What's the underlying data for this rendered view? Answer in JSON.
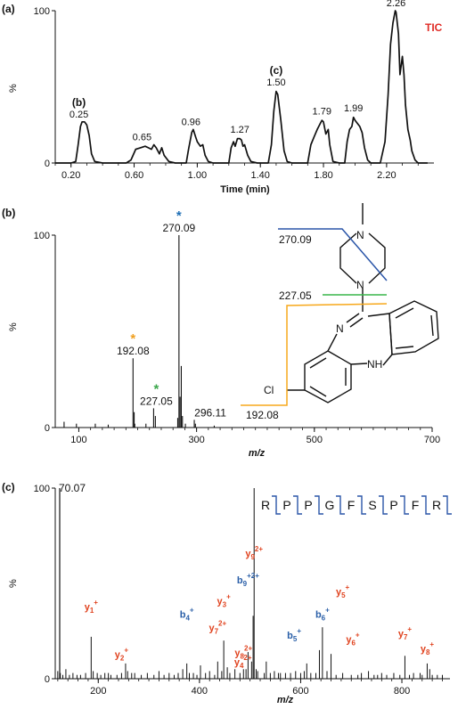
{
  "chart_data": [
    {
      "panel": "(a)",
      "type": "line",
      "annotation": "TIC",
      "xlabel": "Time (min)",
      "ylabel": "%",
      "xlim": [
        0.1,
        2.5
      ],
      "ylim": [
        0,
        100
      ],
      "x_ticks": [
        "0.20",
        "0.60",
        "1.00",
        "1.40",
        "1.80",
        "2.20"
      ],
      "y_ticks": [
        "0",
        "100"
      ],
      "peak_labels": [
        {
          "x": 0.25,
          "y": 27,
          "text": "0.25"
        },
        {
          "x": 0.65,
          "y": 12,
          "text": "0.65"
        },
        {
          "x": 0.96,
          "y": 22,
          "text": "0.96"
        },
        {
          "x": 1.27,
          "y": 17,
          "text": "1.27"
        },
        {
          "x": 1.5,
          "y": 48,
          "text": "1.50"
        },
        {
          "x": 1.79,
          "y": 29,
          "text": "1.79"
        },
        {
          "x": 1.99,
          "y": 31,
          "text": "1.99"
        },
        {
          "x": 2.26,
          "y": 100,
          "text": "2.26"
        }
      ],
      "peak_tags": [
        {
          "x": 0.25,
          "text": "(b)"
        },
        {
          "x": 1.5,
          "text": "(c)"
        }
      ],
      "trace": [
        [
          0.1,
          0
        ],
        [
          0.2,
          0
        ],
        [
          0.23,
          1
        ],
        [
          0.245,
          12
        ],
        [
          0.26,
          24
        ],
        [
          0.27,
          27
        ],
        [
          0.285,
          27
        ],
        [
          0.3,
          25
        ],
        [
          0.315,
          18
        ],
        [
          0.33,
          6
        ],
        [
          0.35,
          1
        ],
        [
          0.4,
          0
        ],
        [
          0.55,
          0
        ],
        [
          0.58,
          2
        ],
        [
          0.61,
          9
        ],
        [
          0.64,
          10
        ],
        [
          0.67,
          11
        ],
        [
          0.69,
          10
        ],
        [
          0.71,
          9
        ],
        [
          0.725,
          12
        ],
        [
          0.74,
          10
        ],
        [
          0.76,
          6
        ],
        [
          0.775,
          10
        ],
        [
          0.79,
          5
        ],
        [
          0.82,
          1
        ],
        [
          0.86,
          0
        ],
        [
          0.93,
          0
        ],
        [
          0.945,
          9
        ],
        [
          0.965,
          20
        ],
        [
          0.975,
          22
        ],
        [
          0.99,
          17
        ],
        [
          1.0,
          14
        ],
        [
          1.02,
          11
        ],
        [
          1.035,
          12
        ],
        [
          1.05,
          5
        ],
        [
          1.07,
          1
        ],
        [
          1.1,
          0
        ],
        [
          1.2,
          0
        ],
        [
          1.215,
          10
        ],
        [
          1.23,
          14
        ],
        [
          1.24,
          11
        ],
        [
          1.255,
          16
        ],
        [
          1.27,
          16
        ],
        [
          1.28,
          15
        ],
        [
          1.29,
          11
        ],
        [
          1.3,
          12
        ],
        [
          1.32,
          5
        ],
        [
          1.34,
          1
        ],
        [
          1.38,
          0
        ],
        [
          1.45,
          0
        ],
        [
          1.47,
          12
        ],
        [
          1.485,
          34
        ],
        [
          1.5,
          47
        ],
        [
          1.51,
          45
        ],
        [
          1.53,
          28
        ],
        [
          1.55,
          8
        ],
        [
          1.57,
          1
        ],
        [
          1.6,
          0
        ],
        [
          1.7,
          0
        ],
        [
          1.72,
          12
        ],
        [
          1.74,
          17
        ],
        [
          1.76,
          22
        ],
        [
          1.78,
          26
        ],
        [
          1.79,
          28
        ],
        [
          1.8,
          27
        ],
        [
          1.815,
          19
        ],
        [
          1.83,
          22
        ],
        [
          1.84,
          12
        ],
        [
          1.86,
          1
        ],
        [
          1.9,
          0
        ],
        [
          1.935,
          0
        ],
        [
          1.95,
          14
        ],
        [
          1.965,
          22
        ],
        [
          1.98,
          24
        ],
        [
          1.99,
          30
        ],
        [
          2.0,
          28
        ],
        [
          2.015,
          26
        ],
        [
          2.03,
          24
        ],
        [
          2.045,
          20
        ],
        [
          2.06,
          10
        ],
        [
          2.08,
          2
        ],
        [
          2.1,
          0
        ],
        [
          2.16,
          0
        ],
        [
          2.19,
          14
        ],
        [
          2.21,
          45
        ],
        [
          2.225,
          78
        ],
        [
          2.24,
          92
        ],
        [
          2.255,
          100
        ],
        [
          2.26,
          99
        ],
        [
          2.275,
          85
        ],
        [
          2.285,
          58
        ],
        [
          2.3,
          70
        ],
        [
          2.31,
          58
        ],
        [
          2.32,
          38
        ],
        [
          2.335,
          22
        ],
        [
          2.35,
          15
        ],
        [
          2.36,
          8
        ],
        [
          2.38,
          2
        ],
        [
          2.4,
          0
        ],
        [
          2.46,
          0
        ]
      ]
    },
    {
      "panel": "(b)",
      "type": "bar",
      "xlabel": "m/z",
      "ylabel": "%",
      "xlim": [
        60,
        700
      ],
      "ylim": [
        0,
        100
      ],
      "x_ticks": [
        "100",
        "300",
        "500",
        "700"
      ],
      "y_ticks": [
        "0",
        "100"
      ],
      "peaks": [
        [
          75,
          3
        ],
        [
          96,
          2
        ],
        [
          128,
          2
        ],
        [
          150,
          1.5
        ],
        [
          192.08,
          36
        ],
        [
          194,
          8
        ],
        [
          195,
          2
        ],
        [
          214,
          2
        ],
        [
          227.05,
          10
        ],
        [
          230,
          6
        ],
        [
          268,
          5
        ],
        [
          270.09,
          100
        ],
        [
          272,
          16
        ],
        [
          274,
          32
        ],
        [
          276,
          6
        ],
        [
          281,
          2
        ],
        [
          296.11,
          4
        ],
        [
          298,
          2
        ],
        [
          330,
          1
        ]
      ],
      "labels": [
        {
          "x": 270.09,
          "text": "270.09",
          "star": "#1f6fb5"
        },
        {
          "x": 192.08,
          "text": "192.08",
          "star": "#f0a020"
        },
        {
          "x": 227.05,
          "text": "227.05",
          "star": "#3aa64a"
        },
        {
          "x": 296.11,
          "text": "296.11"
        }
      ],
      "structure": {
        "atoms": [
          "N",
          "N",
          "N",
          "NH",
          "Cl"
        ],
        "fragment_labels": [
          {
            "text": "270.09",
            "color": "#2a55a8"
          },
          {
            "text": "227.05",
            "color": "#39b54a"
          },
          {
            "text": "192.08",
            "color": "#f7a81b"
          }
        ]
      }
    },
    {
      "panel": "(c)",
      "type": "bar",
      "xlabel": "m/z",
      "ylabel": "%",
      "xlim": [
        115,
        895
      ],
      "ylim": [
        0,
        100
      ],
      "x_ticks": [
        "200",
        "400",
        "600",
        "800"
      ],
      "y_ticks": [
        "0",
        "100"
      ],
      "sequence": [
        "R",
        "P",
        "P",
        "G",
        "F",
        "S",
        "P",
        "F",
        "R"
      ],
      "peaks": [
        [
          120,
          4
        ],
        [
          125,
          3
        ],
        [
          130,
          2
        ],
        [
          136,
          5
        ],
        [
          143,
          2
        ],
        [
          150,
          3
        ],
        [
          158,
          2
        ],
        [
          165,
          2
        ],
        [
          175,
          3
        ],
        [
          186,
          22
        ],
        [
          190,
          4
        ],
        [
          198,
          3
        ],
        [
          205,
          2
        ],
        [
          213,
          3
        ],
        [
          220,
          3
        ],
        [
          225,
          2
        ],
        [
          237,
          2
        ],
        [
          246,
          3
        ],
        [
          254,
          8
        ],
        [
          258,
          4
        ],
        [
          266,
          3
        ],
        [
          272,
          3
        ],
        [
          285,
          2
        ],
        [
          297,
          3
        ],
        [
          310,
          2
        ],
        [
          320,
          4
        ],
        [
          330,
          2
        ],
        [
          340,
          3
        ],
        [
          350,
          2
        ],
        [
          358,
          3
        ],
        [
          367,
          5
        ],
        [
          375,
          8
        ],
        [
          380,
          3
        ],
        [
          388,
          3
        ],
        [
          395,
          2
        ],
        [
          402,
          7
        ],
        [
          412,
          3
        ],
        [
          420,
          4
        ],
        [
          430,
          2
        ],
        [
          436,
          9
        ],
        [
          444,
          4
        ],
        [
          448,
          20
        ],
        [
          455,
          6
        ],
        [
          460,
          3
        ],
        [
          470,
          5
        ],
        [
          480,
          3
        ],
        [
          487,
          5
        ],
        [
          492,
          5
        ],
        [
          496,
          14
        ],
        [
          503,
          9
        ],
        [
          506,
          33
        ],
        [
          508,
          100
        ],
        [
          512,
          5
        ],
        [
          515,
          4
        ],
        [
          528,
          3
        ],
        [
          532,
          9
        ],
        [
          540,
          3
        ],
        [
          548,
          4
        ],
        [
          556,
          3
        ],
        [
          560,
          3
        ],
        [
          570,
          3
        ],
        [
          580,
          3
        ],
        [
          590,
          4
        ],
        [
          600,
          3
        ],
        [
          607,
          4
        ],
        [
          612,
          8
        ],
        [
          620,
          3
        ],
        [
          630,
          3
        ],
        [
          637,
          15
        ],
        [
          643,
          27
        ],
        [
          652,
          4
        ],
        [
          660,
          13
        ],
        [
          670,
          2
        ],
        [
          683,
          3
        ],
        [
          700,
          2
        ],
        [
          713,
          2
        ],
        [
          720,
          3
        ],
        [
          734,
          4
        ],
        [
          745,
          2
        ],
        [
          752,
          2
        ],
        [
          760,
          3
        ],
        [
          770,
          2
        ],
        [
          784,
          3
        ],
        [
          796,
          2
        ],
        [
          806,
          12
        ],
        [
          815,
          2
        ],
        [
          823,
          3
        ],
        [
          836,
          3
        ],
        [
          840,
          2
        ],
        [
          850,
          8
        ],
        [
          855,
          5
        ],
        [
          860,
          2
        ],
        [
          870,
          2
        ],
        [
          880,
          2
        ]
      ],
      "labels": [
        {
          "x": 70.07,
          "text": "70.07"
        }
      ],
      "ion_labels": [
        {
          "x": 186,
          "y": 36,
          "text": "y1+",
          "color": "#e0431f"
        },
        {
          "x": 246,
          "y": 11,
          "text": "y2+",
          "color": "#e0431f"
        },
        {
          "x": 375,
          "y": 32,
          "text": "b4+",
          "color": "#2a5fa8"
        },
        {
          "x": 436,
          "y": 25,
          "text": "y7 2+",
          "color": "#e0431f"
        },
        {
          "x": 448,
          "y": 39,
          "text": "y3+",
          "color": "#e0431f"
        },
        {
          "x": 487,
          "y": 12,
          "text": "y8 2+",
          "color": "#e0431f"
        },
        {
          "x": 496,
          "y": 50,
          "text": "b9 +2+",
          "color": "#2a5fa8"
        },
        {
          "x": 508,
          "y": 64,
          "text": "y9 2+",
          "color": "#e0431f"
        },
        {
          "x": 486,
          "y": 7,
          "text": "y4 2+",
          "color": "#e0431f"
        },
        {
          "x": 587,
          "y": 21,
          "text": "b5+",
          "color": "#2a5fa8"
        },
        {
          "x": 643,
          "y": 32,
          "text": "b6+",
          "color": "#2a5fa8"
        },
        {
          "x": 703,
          "y": 19,
          "text": "y6+",
          "color": "#e0431f"
        },
        {
          "x": 683,
          "y": 44,
          "text": "y5+",
          "color": "#e0431f"
        },
        {
          "x": 806,
          "y": 22,
          "text": "y7+",
          "color": "#e0431f"
        },
        {
          "x": 850,
          "y": 14,
          "text": "y8+",
          "color": "#e0431f"
        }
      ]
    }
  ],
  "annotation_color": "#e02b25"
}
